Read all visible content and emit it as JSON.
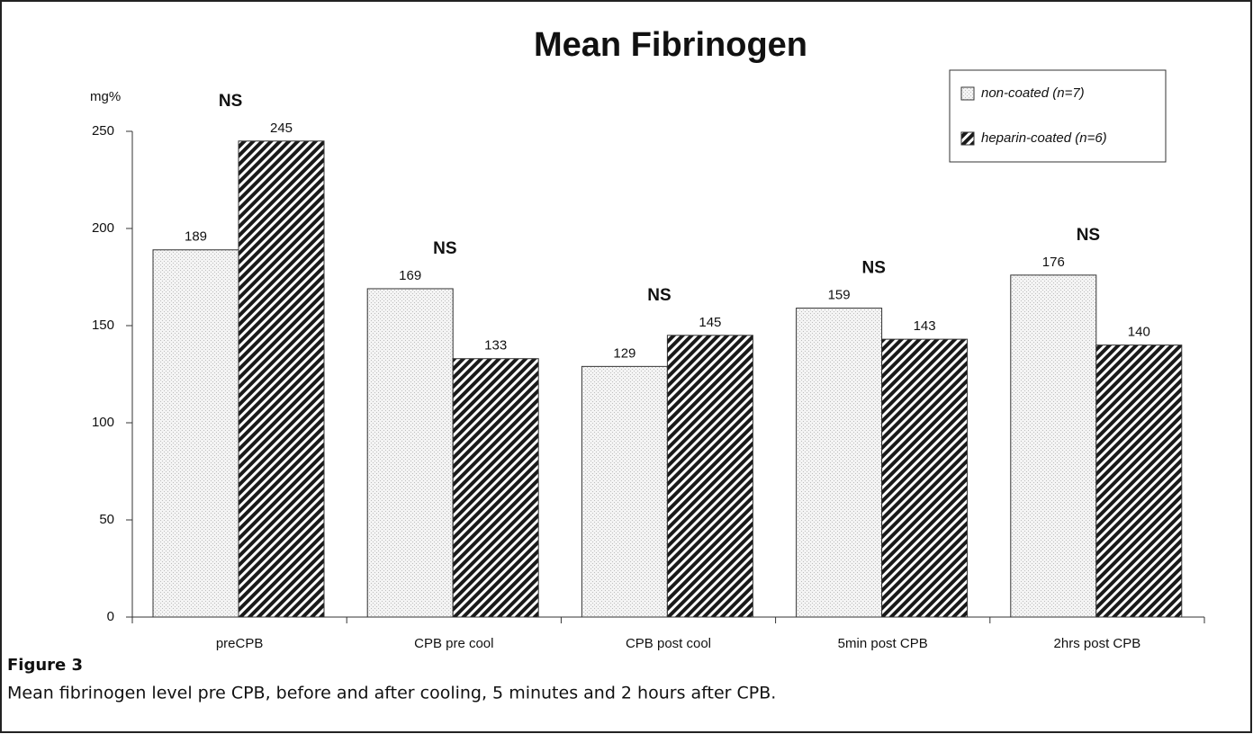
{
  "chart_data": {
    "type": "bar",
    "title": "Mean Fibrinogen",
    "y_label": "mg%",
    "categories": [
      "preCPB",
      "CPB pre cool",
      "CPB post cool",
      "5min post CPB",
      "2hrs post CPB"
    ],
    "series": [
      {
        "name": "non-coated (n=7)",
        "color": "#bdbdbd",
        "values": [
          189,
          169,
          129,
          159,
          176
        ]
      },
      {
        "name": "heparin-coated (n=6)",
        "color": "#1a1a1a",
        "values": [
          245,
          133,
          145,
          143,
          140
        ]
      }
    ],
    "annotations": [
      "NS",
      "NS",
      "NS",
      "NS",
      "NS"
    ],
    "ylim": [
      0,
      250
    ],
    "yticks": [
      0,
      50,
      100,
      150,
      200,
      250
    ],
    "grid": false,
    "legend": "top-right"
  },
  "figure": {
    "label": "Figure 3",
    "caption": "Mean fibrinogen level pre CPB, before and after cooling, 5 minutes and 2 hours after CPB."
  }
}
